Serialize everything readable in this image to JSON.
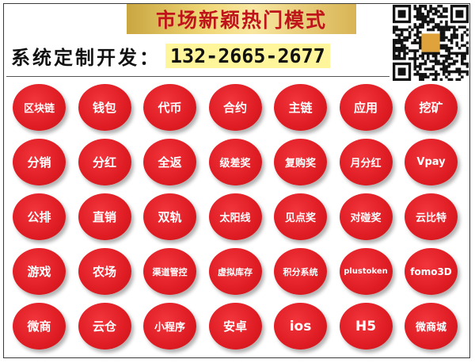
{
  "header": {
    "banner_title": "市场新颖热门模式",
    "contact_label": "系统定制开发：",
    "phone": "132-2665-2677"
  },
  "qr_code": {
    "icon": "qr-code-icon"
  },
  "modes": [
    [
      "区块链",
      "钱包",
      "代币",
      "合约",
      "主链",
      "应用",
      "挖矿"
    ],
    [
      "分销",
      "分红",
      "全返",
      "级差奖",
      "复购奖",
      "月分红",
      "Vpay"
    ],
    [
      "公排",
      "直销",
      "双轨",
      "太阳线",
      "见点奖",
      "对碰奖",
      "云比特"
    ],
    [
      "游戏",
      "农场",
      "渠道管控",
      "虚拟库存",
      "积分系统",
      "plustoken",
      "fomo3D"
    ],
    [
      "微商",
      "云仓",
      "小程序",
      "安卓",
      "ios",
      "H5",
      "微商城"
    ]
  ],
  "colors": {
    "button_red": "#df1c23",
    "banner_text": "#c0141b",
    "phone_highlight": "#fff59a"
  }
}
